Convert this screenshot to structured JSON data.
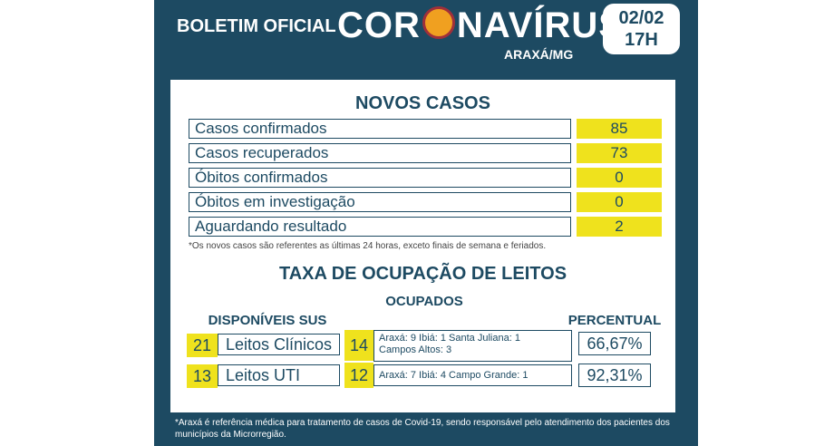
{
  "header": {
    "prefix": "BOLETIM OFICIAL",
    "title_left": "COR",
    "title_right": "NAVÍRUS",
    "location": "ARAXÁ/MG",
    "date": "02/02",
    "time": "17H"
  },
  "new_cases": {
    "title": "NOVOS CASOS",
    "rows": [
      {
        "label": "Casos confirmados",
        "value": "85"
      },
      {
        "label": "Casos recuperados",
        "value": "73"
      },
      {
        "label": "Óbitos confirmados",
        "value": "0"
      },
      {
        "label": "Óbitos em investigação",
        "value": "0"
      },
      {
        "label": "Aguardando resultado",
        "value": "2"
      }
    ],
    "note": "*Os novos casos são referentes as últimas 24 horas, exceto finais de semana e feriados."
  },
  "beds": {
    "title": "TAXA DE OCUPAÇÃO DE LEITOS",
    "occupied_header": "OCUPADOS",
    "available_header": "DISPONÍVEIS SUS",
    "percent_header": "PERCENTUAL",
    "rows": [
      {
        "available": "21",
        "label": "Leitos Clínicos",
        "occupied": "14",
        "detail_1": "Araxá: 9  Ibiá: 1  Santa Juliana: 1",
        "detail_2": "Campos Altos: 3",
        "percent": "66,67%"
      },
      {
        "available": "13",
        "label": "Leitos UTI",
        "occupied": "12",
        "detail_1": "Araxá: 7  Ibiá: 4 Campo Grande: 1",
        "detail_2": "",
        "percent": "92,31%"
      }
    ]
  },
  "footer": "*Araxá é referência médica para tratamento de casos de Covid-19, sendo responsável pelo atendimento dos pacientes dos municípios da Microrregião."
}
